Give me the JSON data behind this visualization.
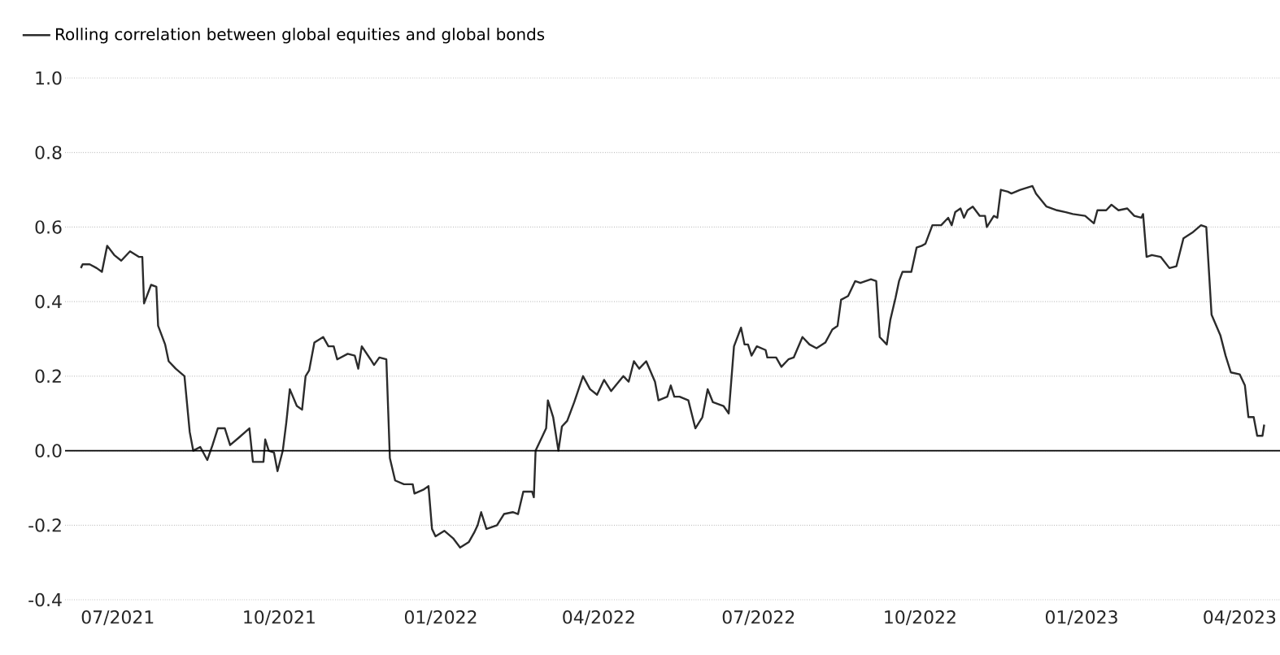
{
  "chart_data": {
    "type": "line",
    "x": [
      "2021-06-10",
      "2021-06-11",
      "2021-06-15",
      "2021-06-19",
      "2021-06-22",
      "2021-06-25",
      "2021-06-29",
      "2021-07-03",
      "2021-07-08",
      "2021-07-13",
      "2021-07-15",
      "2021-07-16",
      "2021-07-20",
      "2021-07-23",
      "2021-07-24",
      "2021-07-28",
      "2021-07-30",
      "2021-08-03",
      "2021-08-08",
      "2021-08-11",
      "2021-08-13",
      "2021-08-17",
      "2021-08-21",
      "2021-08-24",
      "2021-08-27",
      "2021-08-31",
      "2021-09-03",
      "2021-09-08",
      "2021-09-14",
      "2021-09-16",
      "2021-09-22",
      "2021-09-23",
      "2021-09-25",
      "2021-09-28",
      "2021-09-30",
      "2021-10-03",
      "2021-10-05",
      "2021-10-07",
      "2021-10-11",
      "2021-10-14",
      "2021-10-16",
      "2021-10-18",
      "2021-10-21",
      "2021-10-26",
      "2021-10-29",
      "2021-11-01",
      "2021-11-03",
      "2021-11-09",
      "2021-11-13",
      "2021-11-15",
      "2021-11-17",
      "2021-11-22",
      "2021-11-24",
      "2021-11-27",
      "2021-12-01",
      "2021-12-03",
      "2021-12-06",
      "2021-12-11",
      "2021-12-16",
      "2021-12-17",
      "2021-12-22",
      "2021-12-25",
      "2021-12-27",
      "2021-12-29",
      "2022-01-03",
      "2022-01-08",
      "2022-01-12",
      "2022-01-17",
      "2022-01-20",
      "2022-01-22",
      "2022-01-24",
      "2022-01-27",
      "2022-02-02",
      "2022-02-06",
      "2022-02-11",
      "2022-02-14",
      "2022-02-17",
      "2022-02-22",
      "2022-02-23",
      "2022-02-24",
      "2022-02-28",
      "2022-03-02",
      "2022-03-03",
      "2022-03-06",
      "2022-03-09",
      "2022-03-11",
      "2022-03-14",
      "2022-03-18",
      "2022-03-23",
      "2022-03-27",
      "2022-03-31",
      "2022-04-04",
      "2022-04-08",
      "2022-04-15",
      "2022-04-18",
      "2022-04-21",
      "2022-04-24",
      "2022-04-28",
      "2022-05-03",
      "2022-05-05",
      "2022-05-10",
      "2022-05-12",
      "2022-05-14",
      "2022-05-17",
      "2022-05-22",
      "2022-05-26",
      "2022-05-30",
      "2022-06-02",
      "2022-06-05",
      "2022-06-11",
      "2022-06-14",
      "2022-06-17",
      "2022-06-21",
      "2022-06-23",
      "2022-06-25",
      "2022-06-27",
      "2022-06-30",
      "2022-07-05",
      "2022-07-06",
      "2022-07-11",
      "2022-07-14",
      "2022-07-18",
      "2022-07-21",
      "2022-07-26",
      "2022-07-30",
      "2022-08-03",
      "2022-08-08",
      "2022-08-12",
      "2022-08-15",
      "2022-08-17",
      "2022-08-21",
      "2022-08-25",
      "2022-08-28",
      "2022-09-03",
      "2022-09-06",
      "2022-09-08",
      "2022-09-12",
      "2022-09-14",
      "2022-09-17",
      "2022-09-19",
      "2022-09-21",
      "2022-09-26",
      "2022-09-29",
      "2022-10-02",
      "2022-10-04",
      "2022-10-08",
      "2022-10-13",
      "2022-10-17",
      "2022-10-19",
      "2022-10-21",
      "2022-10-24",
      "2022-10-26",
      "2022-10-28",
      "2022-10-31",
      "2022-11-04",
      "2022-11-07",
      "2022-11-08",
      "2022-11-12",
      "2022-11-14",
      "2022-11-16",
      "2022-11-20",
      "2022-11-22",
      "2022-11-27",
      "2022-12-04",
      "2022-12-06",
      "2022-12-12",
      "2022-12-18",
      "2022-12-23",
      "2022-12-27",
      "2023-01-03",
      "2023-01-08",
      "2023-01-10",
      "2023-01-15",
      "2023-01-18",
      "2023-01-22",
      "2023-01-27",
      "2023-01-31",
      "2023-02-04",
      "2023-02-05",
      "2023-02-07",
      "2023-02-10",
      "2023-02-15",
      "2023-02-20",
      "2023-02-24",
      "2023-02-28",
      "2023-03-05",
      "2023-03-10",
      "2023-03-13",
      "2023-03-16",
      "2023-03-21",
      "2023-03-24",
      "2023-03-27",
      "2023-04-01",
      "2023-04-04",
      "2023-04-06",
      "2023-04-09",
      "2023-04-11",
      "2023-04-14",
      "2023-04-15"
    ],
    "series": [
      {
        "name": "Rolling correlation between global equities and global bonds",
        "color": "#2b2b2b",
        "values": [
          0.49,
          0.5,
          0.5,
          0.49,
          0.48,
          0.55,
          0.525,
          0.51,
          0.535,
          0.52,
          0.52,
          0.395,
          0.445,
          0.44,
          0.335,
          0.285,
          0.24,
          0.22,
          0.2,
          0.05,
          0.0,
          0.01,
          -0.025,
          0.015,
          0.06,
          0.06,
          0.015,
          0.035,
          0.06,
          -0.03,
          -0.03,
          0.03,
          0.0,
          -0.005,
          -0.055,
          0.0,
          0.075,
          0.165,
          0.12,
          0.11,
          0.2,
          0.215,
          0.29,
          0.305,
          0.28,
          0.28,
          0.245,
          0.26,
          0.255,
          0.22,
          0.28,
          0.245,
          0.23,
          0.25,
          0.245,
          -0.02,
          -0.08,
          -0.09,
          -0.09,
          -0.115,
          -0.105,
          -0.095,
          -0.21,
          -0.23,
          -0.215,
          -0.235,
          -0.26,
          -0.245,
          -0.22,
          -0.2,
          -0.165,
          -0.21,
          -0.2,
          -0.17,
          -0.165,
          -0.17,
          -0.11,
          -0.11,
          -0.125,
          0.0,
          0.04,
          0.06,
          0.135,
          0.09,
          0.0,
          0.065,
          0.08,
          0.13,
          0.2,
          0.165,
          0.15,
          0.19,
          0.16,
          0.2,
          0.185,
          0.24,
          0.22,
          0.24,
          0.185,
          0.135,
          0.145,
          0.175,
          0.145,
          0.145,
          0.135,
          0.06,
          0.09,
          0.165,
          0.13,
          0.12,
          0.1,
          0.28,
          0.33,
          0.285,
          0.285,
          0.255,
          0.28,
          0.27,
          0.25,
          0.25,
          0.225,
          0.245,
          0.25,
          0.305,
          0.285,
          0.275,
          0.29,
          0.325,
          0.335,
          0.405,
          0.415,
          0.455,
          0.45,
          0.46,
          0.455,
          0.305,
          0.285,
          0.35,
          0.41,
          0.455,
          0.48,
          0.48,
          0.545,
          0.55,
          0.555,
          0.605,
          0.605,
          0.625,
          0.605,
          0.64,
          0.65,
          0.625,
          0.645,
          0.655,
          0.63,
          0.63,
          0.6,
          0.63,
          0.625,
          0.7,
          0.695,
          0.69,
          0.7,
          0.71,
          0.69,
          0.655,
          0.645,
          0.64,
          0.635,
          0.63,
          0.61,
          0.645,
          0.645,
          0.66,
          0.645,
          0.65,
          0.63,
          0.625,
          0.635,
          0.52,
          0.525,
          0.52,
          0.49,
          0.495,
          0.57,
          0.585,
          0.605,
          0.6,
          0.365,
          0.31,
          0.255,
          0.21,
          0.205,
          0.175,
          0.09,
          0.09,
          0.04,
          0.04,
          0.07
        ]
      }
    ],
    "xlim": [
      "2021-06-01",
      "2023-04-24"
    ],
    "xticks": [
      {
        "value": "2021-07-01",
        "label": "07/2021"
      },
      {
        "value": "2021-10-01",
        "label": "10/2021"
      },
      {
        "value": "2022-01-01",
        "label": "01/2022"
      },
      {
        "value": "2022-04-01",
        "label": "04/2022"
      },
      {
        "value": "2022-07-01",
        "label": "07/2022"
      },
      {
        "value": "2022-10-01",
        "label": "10/2022"
      },
      {
        "value": "2023-01-01",
        "label": "01/2023"
      },
      {
        "value": "2023-04-01",
        "label": "04/2023"
      }
    ],
    "ylim": [
      -0.4,
      1.0
    ],
    "yticks": [
      {
        "value": -0.4,
        "label": "-0.4"
      },
      {
        "value": -0.2,
        "label": "-0.2"
      },
      {
        "value": 0,
        "label": "0.0"
      },
      {
        "value": 0.2,
        "label": "0.2"
      },
      {
        "value": 0.4,
        "label": "0.4"
      },
      {
        "value": 0.6,
        "label": "0.6"
      },
      {
        "value": 0.8,
        "label": "0.8"
      },
      {
        "value": 1.0,
        "label": "1.0"
      }
    ],
    "grid": "y",
    "legend": "top left",
    "line_style": "solid",
    "marker": "none",
    "ref_lines": [
      {
        "axis": "y",
        "value": 0,
        "color": "#000000",
        "line_style": "solid"
      }
    ]
  }
}
